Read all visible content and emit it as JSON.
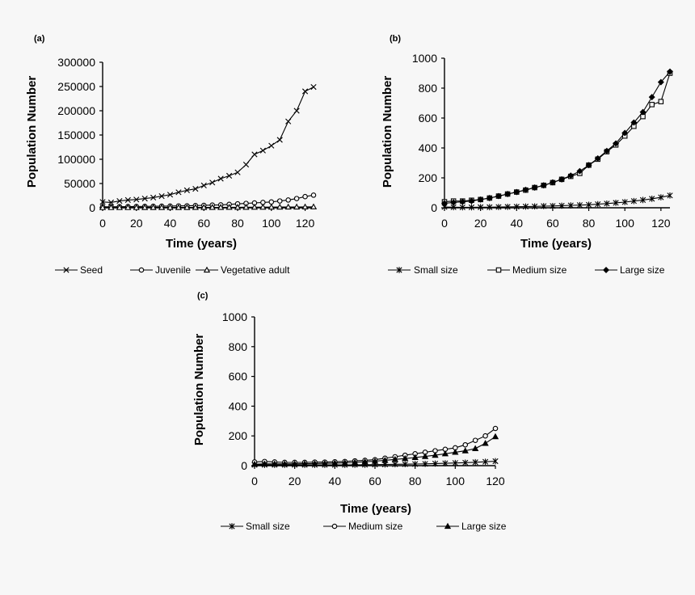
{
  "colors": {
    "background": "#f7f7f7",
    "ink": "#000000"
  },
  "chart_data": [
    {
      "panel": "(a)",
      "type": "line",
      "xlabel": "Time (years)",
      "ylabel": "Population Number",
      "xlim": [
        0,
        125
      ],
      "ylim": [
        0,
        300000
      ],
      "xticks": [
        "0",
        "20",
        "40",
        "60",
        "80",
        "100",
        "120"
      ],
      "yticks": [
        "0",
        "50000",
        "100000",
        "150000",
        "200000",
        "250000",
        "300000"
      ],
      "grid": false,
      "legend": "bottom",
      "series": [
        {
          "name": "Seed",
          "marker": "x-marker",
          "x": [
            0,
            5,
            10,
            15,
            20,
            25,
            30,
            35,
            40,
            45,
            50,
            55,
            60,
            65,
            70,
            75,
            80,
            85,
            90,
            95,
            100,
            105,
            110,
            115,
            120,
            125
          ],
          "y": [
            12000,
            11000,
            14000,
            16000,
            17000,
            19000,
            21000,
            24000,
            27000,
            32000,
            36000,
            39000,
            46000,
            52000,
            60000,
            66000,
            73000,
            89000,
            110000,
            118000,
            128000,
            140000,
            178000,
            200000,
            240000,
            249000
          ]
        },
        {
          "name": "Juvenile",
          "marker": "open-circle-marker",
          "x": [
            0,
            5,
            10,
            15,
            20,
            25,
            30,
            35,
            40,
            45,
            50,
            55,
            60,
            65,
            70,
            75,
            80,
            85,
            90,
            95,
            100,
            105,
            110,
            115,
            120,
            125
          ],
          "y": [
            2000,
            2000,
            2200,
            2400,
            2600,
            2800,
            3000,
            3200,
            3500,
            3800,
            4000,
            4500,
            5000,
            5500,
            6000,
            7000,
            8000,
            9000,
            10000,
            11000,
            12000,
            14000,
            16000,
            19000,
            23000,
            26000
          ]
        },
        {
          "name": "Vegetative adult",
          "marker": "open-triangle-marker",
          "x": [
            0,
            5,
            10,
            15,
            20,
            25,
            30,
            35,
            40,
            45,
            50,
            55,
            60,
            65,
            70,
            75,
            80,
            85,
            90,
            95,
            100,
            105,
            110,
            115,
            120,
            125
          ],
          "y": [
            500,
            500,
            500,
            500,
            500,
            600,
            600,
            600,
            700,
            700,
            700,
            800,
            800,
            900,
            900,
            1000,
            1000,
            1100,
            1200,
            1300,
            1400,
            1500,
            1600,
            1700,
            1800,
            2000
          ]
        }
      ]
    },
    {
      "panel": "(b)",
      "type": "line",
      "xlabel": "Time (years)",
      "ylabel": "Population Number",
      "xlim": [
        0,
        125
      ],
      "ylim": [
        0,
        1000
      ],
      "xticks": [
        "0",
        "20",
        "40",
        "60",
        "80",
        "100",
        "120"
      ],
      "yticks": [
        "0",
        "200",
        "400",
        "600",
        "800",
        "1000"
      ],
      "grid": false,
      "legend": "bottom",
      "series": [
        {
          "name": "Small size",
          "marker": "asterisk-marker",
          "x": [
            0,
            5,
            10,
            15,
            20,
            25,
            30,
            35,
            40,
            45,
            50,
            55,
            60,
            65,
            70,
            75,
            80,
            85,
            90,
            95,
            100,
            105,
            110,
            115,
            120,
            125
          ],
          "y": [
            5,
            4,
            3,
            3,
            4,
            4,
            5,
            6,
            7,
            8,
            9,
            11,
            12,
            14,
            16,
            18,
            20,
            24,
            28,
            33,
            38,
            45,
            52,
            60,
            70,
            82
          ]
        },
        {
          "name": "Medium size",
          "marker": "open-square-marker",
          "x": [
            0,
            5,
            10,
            15,
            20,
            25,
            30,
            35,
            40,
            45,
            50,
            55,
            60,
            65,
            70,
            75,
            80,
            85,
            90,
            95,
            100,
            105,
            110,
            115,
            120,
            125
          ],
          "y": [
            40,
            45,
            45,
            50,
            55,
            65,
            78,
            92,
            105,
            118,
            135,
            150,
            168,
            190,
            210,
            230,
            285,
            325,
            375,
            420,
            480,
            545,
            610,
            690,
            710,
            900
          ]
        },
        {
          "name": "Large size",
          "marker": "filled-diamond-marker",
          "x": [
            0,
            5,
            10,
            15,
            20,
            25,
            30,
            35,
            40,
            45,
            50,
            55,
            60,
            65,
            70,
            75,
            80,
            85,
            90,
            95,
            100,
            105,
            110,
            115,
            120,
            125
          ],
          "y": [
            30,
            35,
            40,
            45,
            55,
            65,
            78,
            92,
            105,
            120,
            135,
            150,
            170,
            190,
            215,
            245,
            285,
            330,
            380,
            430,
            500,
            570,
            640,
            740,
            840,
            910
          ]
        }
      ]
    },
    {
      "panel": "(c)",
      "type": "line",
      "xlabel": "Time (years)",
      "ylabel": "Population Number",
      "xlim": [
        0,
        120
      ],
      "ylim": [
        0,
        1000
      ],
      "xticks": [
        "0",
        "20",
        "40",
        "60",
        "80",
        "100",
        "120"
      ],
      "yticks": [
        "0",
        "200",
        "400",
        "600",
        "800",
        "1000"
      ],
      "grid": false,
      "legend": "bottom",
      "series": [
        {
          "name": "Small size",
          "marker": "asterisk-marker",
          "x": [
            0,
            5,
            10,
            15,
            20,
            25,
            30,
            35,
            40,
            45,
            50,
            55,
            60,
            65,
            70,
            75,
            80,
            85,
            90,
            95,
            100,
            105,
            110,
            115,
            120
          ],
          "y": [
            5,
            5,
            5,
            5,
            5,
            5,
            5,
            5,
            5,
            5,
            6,
            6,
            7,
            8,
            9,
            10,
            11,
            12,
            14,
            16,
            18,
            20,
            23,
            26,
            30
          ]
        },
        {
          "name": "Medium size",
          "marker": "open-circle-marker",
          "x": [
            0,
            5,
            10,
            15,
            20,
            25,
            30,
            35,
            40,
            45,
            50,
            55,
            60,
            65,
            70,
            75,
            80,
            85,
            90,
            95,
            100,
            105,
            110,
            115,
            120
          ],
          "y": [
            25,
            28,
            25,
            22,
            22,
            22,
            24,
            24,
            26,
            28,
            32,
            36,
            40,
            50,
            60,
            70,
            80,
            90,
            100,
            110,
            120,
            140,
            170,
            200,
            250
          ]
        },
        {
          "name": "Large size",
          "marker": "filled-triangle-marker",
          "x": [
            0,
            5,
            10,
            15,
            20,
            25,
            30,
            35,
            40,
            45,
            50,
            55,
            60,
            65,
            70,
            75,
            80,
            85,
            90,
            95,
            100,
            105,
            110,
            115,
            120
          ],
          "y": [
            10,
            12,
            12,
            12,
            12,
            13,
            14,
            15,
            17,
            19,
            22,
            26,
            30,
            36,
            42,
            48,
            55,
            62,
            70,
            80,
            90,
            100,
            115,
            150,
            195
          ]
        }
      ]
    }
  ]
}
